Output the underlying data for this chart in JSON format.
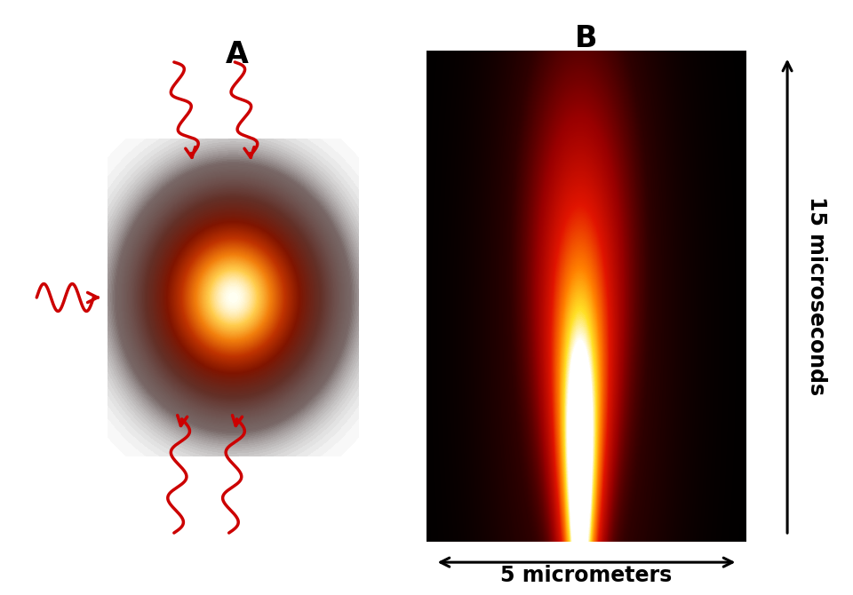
{
  "title_A": "A",
  "title_B": "B",
  "bg_color": "#ffffff",
  "label_x": "5 micrometers",
  "label_y": "15 microseconds",
  "arrow_color": "#cc0000",
  "text_color": "#000000"
}
